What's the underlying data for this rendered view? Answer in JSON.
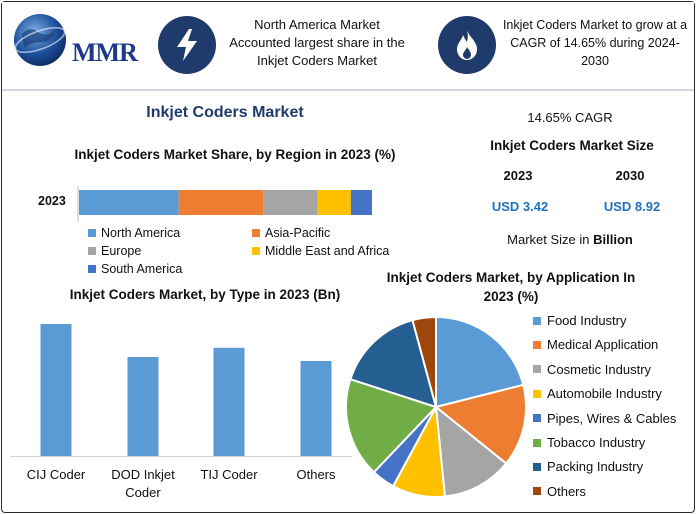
{
  "header": {
    "logo_text": "MMR",
    "box1_text": "North America Market Accounted largest share in the Inkjet Coders Market",
    "box2_text": "Inkjet Coders Market to grow at a CAGR of 14.65% during 2024-2030",
    "icon1": "lightning-bolt-icon",
    "icon2": "flame-icon"
  },
  "main_title": "Inkjet Coders Market",
  "stats": {
    "cagr": "14.65% CAGR",
    "size_title": "Inkjet Coders Market Size",
    "year1": "2023",
    "year2": "2030",
    "value1": "USD 3.42",
    "value2": "USD 8.92",
    "unit_note_prefix": "Market Size in ",
    "unit_note_bold": "Billion"
  },
  "colors": {
    "navy": "#1f3b6b",
    "blue_text": "#1e73be"
  },
  "chart_data": [
    {
      "type": "bar",
      "orientation": "horizontal-stacked",
      "title": "Inkjet Coders Market Share, by Region in 2023 (%)",
      "categories": [
        "2023"
      ],
      "series": [
        {
          "name": "North America",
          "values": [
            33
          ],
          "color": "#5b9bd5"
        },
        {
          "name": "Asia-Pacific",
          "values": [
            28
          ],
          "color": "#ed7d31"
        },
        {
          "name": "Europe",
          "values": [
            18
          ],
          "color": "#a5a5a5"
        },
        {
          "name": "Middle East and Africa",
          "values": [
            11
          ],
          "color": "#ffc000"
        },
        {
          "name": "South America",
          "values": [
            7
          ],
          "color": "#4472c4"
        }
      ],
      "legend": "bottom"
    },
    {
      "type": "bar",
      "title": "Inkjet Coders Market, by Type in 2023 (Bn)",
      "categories": [
        "CIJ Coder",
        "DOD Inkjet Coder",
        "TIJ Coder",
        "Others"
      ],
      "values": [
        1.0,
        0.75,
        0.82,
        0.72
      ],
      "color": "#5b9bd5",
      "ylim": [
        0,
        1.1
      ]
    },
    {
      "type": "pie",
      "title": "Inkjet Coders Market, by Application In 2023 (%)",
      "series": [
        {
          "name": "Food Industry",
          "value": 20,
          "color": "#5b9bd5"
        },
        {
          "name": "Medical Application",
          "value": 14,
          "color": "#ed7d31"
        },
        {
          "name": "Cosmetic Industry",
          "value": 12,
          "color": "#a5a5a5"
        },
        {
          "name": "Automobile Industry",
          "value": 9,
          "color": "#ffc000"
        },
        {
          "name": "Pipes, Wires & Cables",
          "value": 4,
          "color": "#4472c4"
        },
        {
          "name": "Tobacco Industry",
          "value": 17,
          "color": "#70ad47"
        },
        {
          "name": "Packing Industry",
          "value": 15,
          "color": "#255e91"
        },
        {
          "name": "Others",
          "value": 4,
          "color": "#9e480e"
        }
      ],
      "legend": "right"
    }
  ]
}
